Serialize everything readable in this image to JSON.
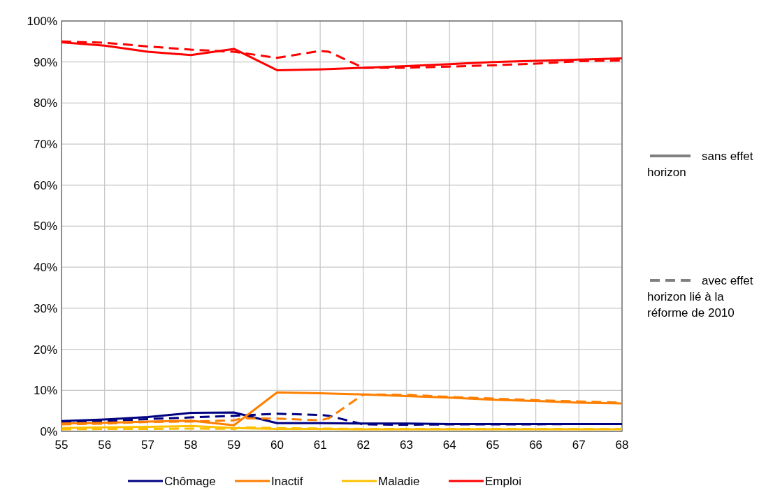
{
  "chart_data": {
    "type": "line",
    "xlim": [
      55,
      68
    ],
    "ylim": [
      0,
      100
    ],
    "xticks": [
      55,
      56,
      57,
      58,
      59,
      60,
      61,
      62,
      63,
      64,
      65,
      66,
      67,
      68
    ],
    "yticks": [
      {
        "value": 0,
        "label": "0%"
      },
      {
        "value": 10,
        "label": "10%"
      },
      {
        "value": 20,
        "label": "20%"
      },
      {
        "value": 30,
        "label": "30%"
      },
      {
        "value": 40,
        "label": "40%"
      },
      {
        "value": 50,
        "label": "50%"
      },
      {
        "value": 60,
        "label": "60%"
      },
      {
        "value": 70,
        "label": "70%"
      },
      {
        "value": 80,
        "label": "80%"
      },
      {
        "value": 90,
        "label": "90%"
      },
      {
        "value": 100,
        "label": "100%"
      }
    ],
    "grid": true,
    "legend": "bottom",
    "marker": "none",
    "annotations": [
      "sans effet horizon",
      "avec effet horizon lié à la réforme de 2010"
    ],
    "series": [
      {
        "name": "Chômage",
        "color": "#000080",
        "line_style": "solid",
        "x": [
          55,
          56,
          57,
          58,
          59,
          60,
          61,
          62,
          63,
          64,
          65,
          66,
          67,
          68
        ],
        "values": [
          2.5,
          2.9,
          3.5,
          4.5,
          4.6,
          2.0,
          2.0,
          1.9,
          1.9,
          1.8,
          1.8,
          1.8,
          1.8,
          1.8
        ]
      },
      {
        "color": "#000080",
        "line_style": "dashed",
        "x": [
          55,
          56,
          57,
          58,
          59,
          60,
          61,
          61.2,
          62,
          63,
          64,
          65,
          66,
          67,
          68
        ],
        "values": [
          2.2,
          2.5,
          3.0,
          3.4,
          3.8,
          4.3,
          4.0,
          3.8,
          1.7,
          1.6,
          1.7,
          1.7,
          1.7,
          1.8,
          1.8
        ]
      },
      {
        "name": "Inactif",
        "color": "#ff7f00",
        "line_style": "solid",
        "x": [
          55,
          56,
          57,
          58,
          59,
          60,
          61,
          62,
          63,
          64,
          65,
          66,
          67,
          68
        ],
        "values": [
          1.9,
          2.1,
          2.4,
          2.6,
          1.5,
          9.5,
          9.3,
          9.0,
          8.6,
          8.2,
          7.7,
          7.4,
          7.0,
          6.8
        ]
      },
      {
        "color": "#ff7f00",
        "line_style": "dashed",
        "x": [
          55,
          56,
          57,
          58,
          59,
          59.2,
          60,
          61,
          61.2,
          62,
          63,
          64,
          65,
          66,
          67,
          68
        ],
        "values": [
          1.7,
          1.9,
          2.3,
          2.4,
          2.7,
          3.2,
          3.1,
          2.7,
          3.2,
          9.0,
          8.9,
          8.4,
          8.0,
          7.6,
          7.3,
          7.0
        ]
      },
      {
        "name": "Maladie",
        "color": "#ffc000",
        "line_style": "solid",
        "x": [
          55,
          56,
          57,
          58,
          59,
          60,
          61,
          62,
          63,
          64,
          65,
          66,
          67,
          68
        ],
        "values": [
          0.8,
          1.0,
          1.1,
          1.3,
          0.8,
          0.6,
          0.6,
          0.5,
          0.5,
          0.5,
          0.5,
          0.5,
          0.5,
          0.5
        ]
      },
      {
        "color": "#ffc000",
        "line_style": "dashed",
        "x": [
          55,
          56,
          57,
          58,
          59,
          59.2,
          60,
          61,
          62,
          63,
          64,
          65,
          66,
          67,
          68
        ],
        "values": [
          0.5,
          0.6,
          0.6,
          0.7,
          0.6,
          1.0,
          0.8,
          0.7,
          0.6,
          0.6,
          0.6,
          0.6,
          0.6,
          0.6,
          0.6
        ]
      },
      {
        "name": "Emploi",
        "color": "#ff0000",
        "line_style": "solid",
        "x": [
          55,
          56,
          57,
          58,
          59,
          60,
          61,
          62,
          63,
          64,
          65,
          66,
          67,
          68
        ],
        "values": [
          94.8,
          94.0,
          92.5,
          91.7,
          93.2,
          88.0,
          88.2,
          88.6,
          89.0,
          89.5,
          90.0,
          90.3,
          90.6,
          90.9
        ]
      },
      {
        "color": "#ff0000",
        "line_style": "dashed",
        "x": [
          55,
          56,
          57,
          58,
          59,
          59.2,
          60,
          61,
          61.2,
          62,
          63,
          64,
          65,
          66,
          67,
          68
        ],
        "values": [
          95.0,
          94.7,
          93.8,
          93.0,
          92.5,
          92.2,
          91.0,
          92.7,
          92.5,
          88.6,
          88.6,
          88.9,
          89.2,
          89.6,
          90.2,
          90.4
        ]
      }
    ]
  }
}
